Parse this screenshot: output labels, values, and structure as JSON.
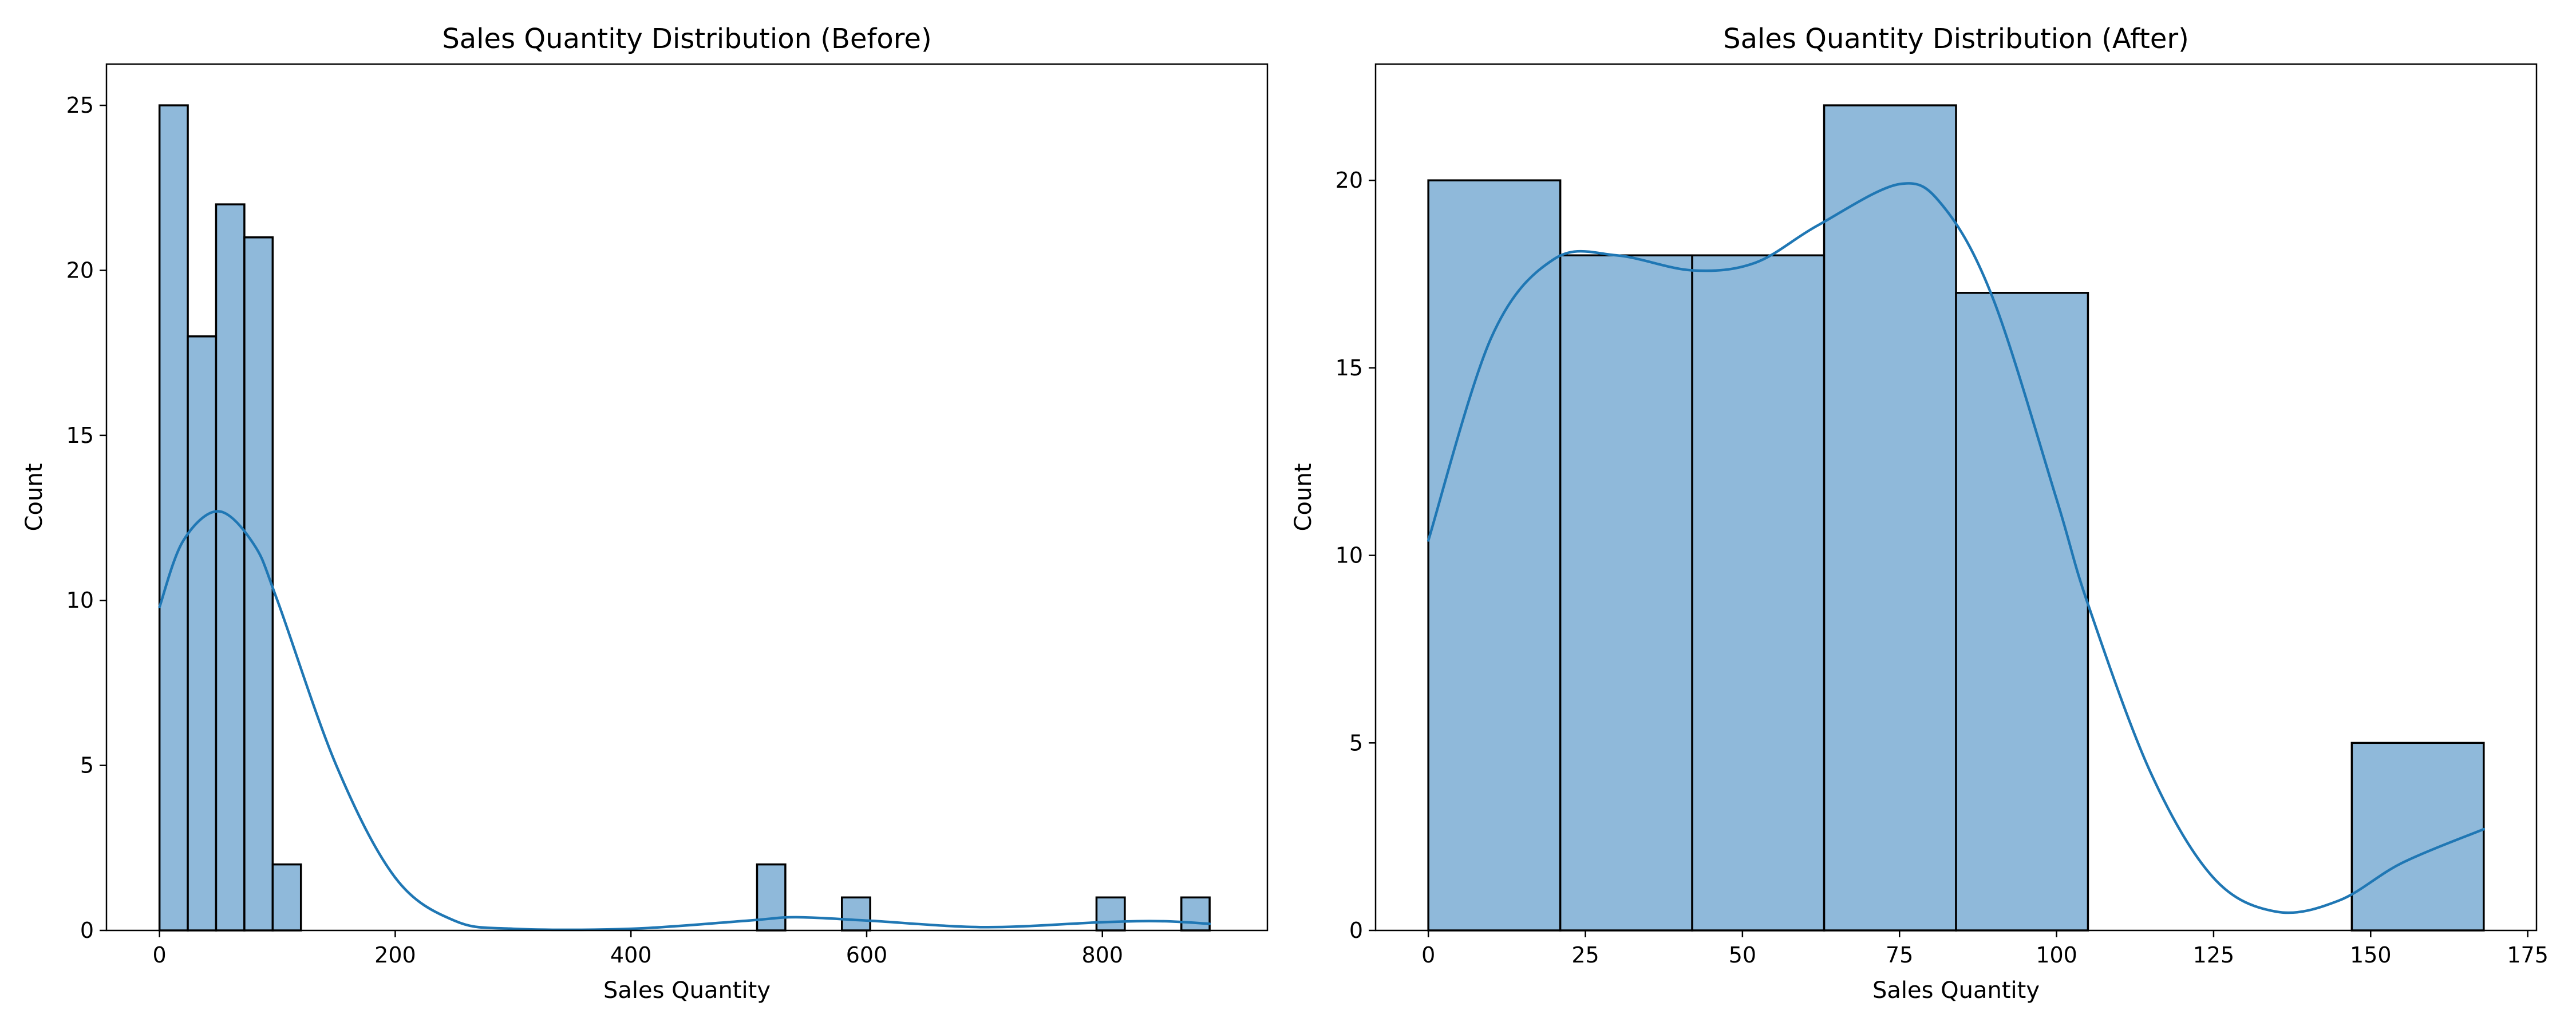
{
  "colors": {
    "bar_fill": "#8fb9da",
    "bar_edge": "#000000",
    "kde_line": "#1f77b4"
  },
  "chart_data": [
    {
      "type": "bar",
      "subtype": "histogram-with-kde",
      "title": "Sales Quantity Distribution (Before)",
      "xlabel": "Sales Quantity",
      "ylabel": "Count",
      "xlim": [
        -45,
        940
      ],
      "ylim": [
        0,
        26.25
      ],
      "xticks": [
        0,
        200,
        400,
        600,
        800
      ],
      "yticks": [
        0,
        5,
        10,
        15,
        20,
        25
      ],
      "grid": false,
      "bins": [
        {
          "x0": 0,
          "x1": 24,
          "count": 25
        },
        {
          "x0": 24,
          "x1": 48,
          "count": 18
        },
        {
          "x0": 48,
          "x1": 72,
          "count": 22
        },
        {
          "x0": 72,
          "x1": 96,
          "count": 21
        },
        {
          "x0": 96,
          "x1": 120,
          "count": 2
        },
        {
          "x0": 507,
          "x1": 531,
          "count": 2
        },
        {
          "x0": 579,
          "x1": 603,
          "count": 1
        },
        {
          "x0": 795,
          "x1": 819,
          "count": 1
        },
        {
          "x0": 867,
          "x1": 891,
          "count": 1
        }
      ],
      "kde": {
        "x": [
          0,
          20,
          50,
          80,
          100,
          150,
          200,
          250,
          300,
          400,
          500,
          540,
          600,
          700,
          800,
          850,
          891
        ],
        "y": [
          9.8,
          11.8,
          12.7,
          11.7,
          10.0,
          5.0,
          1.6,
          0.3,
          0.05,
          0.05,
          0.3,
          0.4,
          0.3,
          0.1,
          0.25,
          0.28,
          0.2
        ]
      }
    },
    {
      "type": "bar",
      "subtype": "histogram-with-kde",
      "title": "Sales Quantity Distribution (After)",
      "xlabel": "Sales Quantity",
      "ylabel": "Count",
      "xlim": [
        -8.4,
        176.4
      ],
      "ylim": [
        0,
        23.1
      ],
      "xticks": [
        0,
        25,
        50,
        75,
        100,
        125,
        150,
        175
      ],
      "yticks": [
        0,
        5,
        10,
        15,
        20
      ],
      "grid": false,
      "bins": [
        {
          "x0": 0,
          "x1": 21,
          "count": 20
        },
        {
          "x0": 21,
          "x1": 42,
          "count": 18
        },
        {
          "x0": 42,
          "x1": 63,
          "count": 18
        },
        {
          "x0": 63,
          "x1": 84,
          "count": 22
        },
        {
          "x0": 84,
          "x1": 105,
          "count": 17
        },
        {
          "x0": 147,
          "x1": 168,
          "count": 5
        }
      ],
      "kde": {
        "x": [
          0,
          10,
          20,
          30,
          42,
          52,
          62,
          75,
          82,
          90,
          100,
          105,
          115,
          125,
          135,
          145,
          155,
          168
        ],
        "y": [
          10.4,
          15.8,
          17.9,
          18.0,
          17.6,
          17.8,
          18.8,
          19.9,
          19.3,
          16.8,
          11.5,
          8.7,
          4.2,
          1.4,
          0.5,
          0.8,
          1.8,
          2.7
        ]
      }
    }
  ]
}
